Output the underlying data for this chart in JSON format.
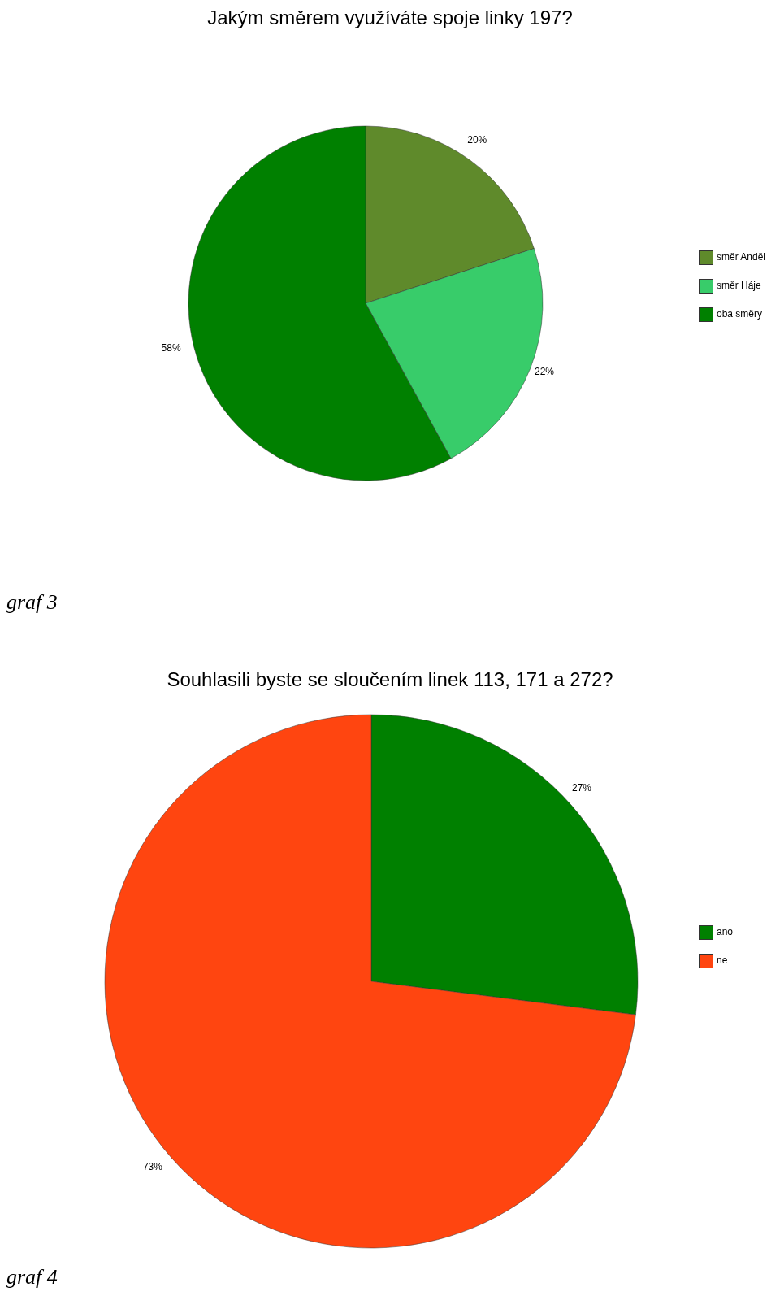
{
  "chart_data": [
    {
      "type": "pie",
      "title": "Jakým směrem využíváte spoje linky 197?",
      "categories": [
        "směr Anděl",
        "směr Háje",
        "oba směry"
      ],
      "values": [
        20,
        22,
        58
      ],
      "value_labels": [
        "20%",
        "22%",
        "58%"
      ],
      "colors": [
        "#5f8a2b",
        "#38cc6a",
        "#008000"
      ],
      "legend": "right",
      "annotations": [
        "graf 3"
      ]
    },
    {
      "type": "pie",
      "title": "Souhlasili byste se sloučením linek 113, 171 a 272?",
      "categories": [
        "ano",
        "ne"
      ],
      "values": [
        27,
        73
      ],
      "value_labels": [
        "27%",
        "73%"
      ],
      "colors": [
        "#008000",
        "#ff4510"
      ],
      "legend": "right",
      "annotations": [
        "graf 4"
      ]
    }
  ]
}
